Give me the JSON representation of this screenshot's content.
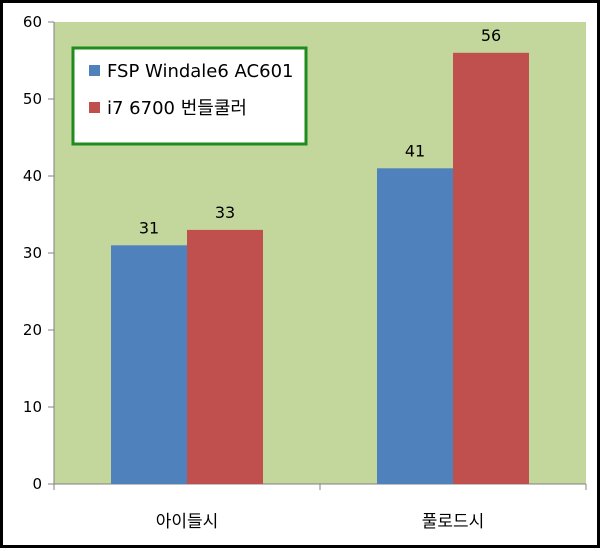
{
  "chart_data": {
    "type": "bar",
    "categories": [
      "아이들시",
      "풀로드시"
    ],
    "series": [
      {
        "name": "FSP Windale6 AC601",
        "values": [
          31,
          41
        ],
        "color": "#4F81BD"
      },
      {
        "name": "i7 6700 번들쿨러",
        "values": [
          33,
          56
        ],
        "color": "#C0504D"
      }
    ],
    "ylim": [
      0,
      60
    ],
    "yticks": [
      0,
      10,
      20,
      30,
      40,
      50,
      60
    ],
    "title": "",
    "xlabel": "",
    "ylabel": "",
    "grid": false,
    "legend_position": "top-left",
    "plot_background": "#C3D69B",
    "legend_border_color": "#1E8C1E"
  }
}
